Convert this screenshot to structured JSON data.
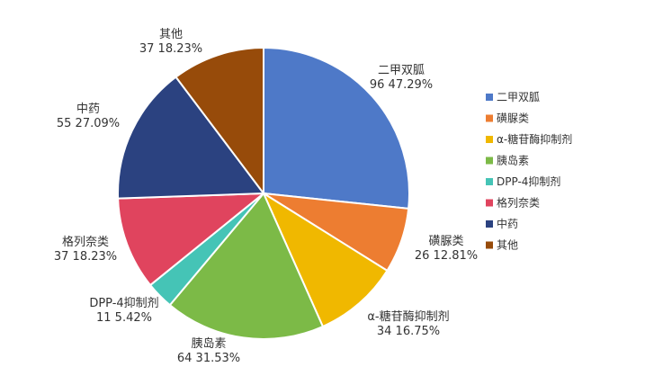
{
  "chart_data": {
    "type": "pie",
    "start_angle_deg": 0,
    "direction": "clockwise",
    "legend_position": "right",
    "slices": [
      {
        "name": "二甲双胍",
        "value": 96,
        "percent_label": "47.29%",
        "color": "#4E79C8"
      },
      {
        "name": "磺脲类",
        "value": 26,
        "percent_label": "12.81%",
        "color": "#ED7D31"
      },
      {
        "name": "α-糖苷酶抑制剂",
        "value": 34,
        "percent_label": "16.75%",
        "color": "#F0B800"
      },
      {
        "name": "胰岛素",
        "value": 64,
        "percent_label": "31.53%",
        "color": "#7CBA47"
      },
      {
        "name": "DPP-4抑制剂",
        "value": 11,
        "percent_label": "5.42%",
        "color": "#45C4B6"
      },
      {
        "name": "格列奈类",
        "value": 37,
        "percent_label": "18.23%",
        "color": "#E0445E"
      },
      {
        "name": "中药",
        "value": 55,
        "percent_label": "27.09%",
        "color": "#2B4280"
      },
      {
        "name": "其他",
        "value": 37,
        "percent_label": "18.23%",
        "color": "#974B0A"
      }
    ]
  }
}
